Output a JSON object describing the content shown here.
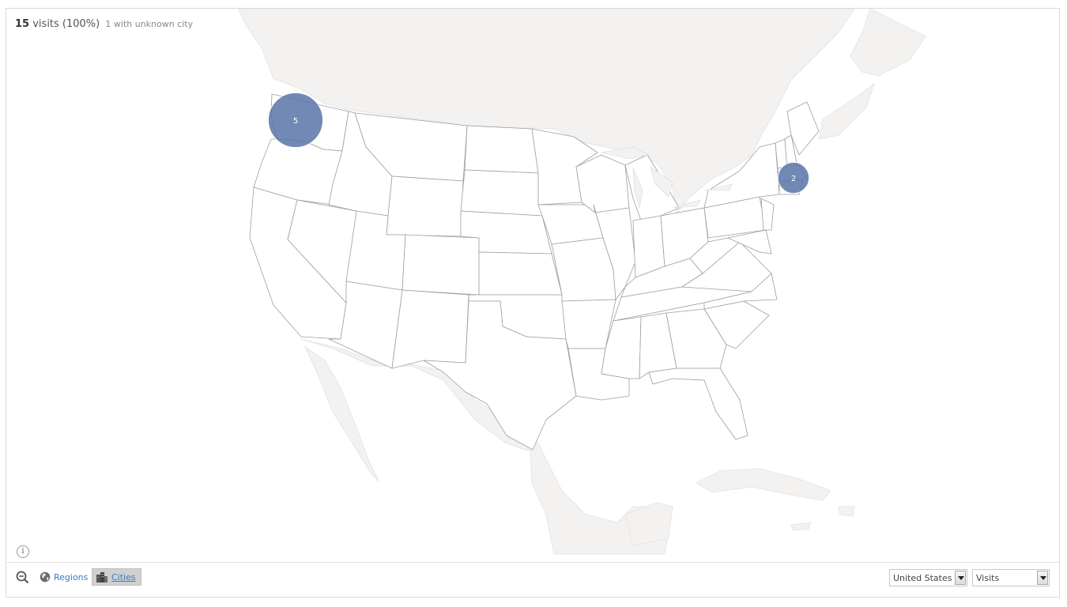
{
  "summary": {
    "visits_count": "15",
    "visits_text": "visits (100%)",
    "unknown_text": "1 with unknown city"
  },
  "map": {
    "land_color": "#f3f2f1",
    "state_color": "#ffffff",
    "border_color": "#9e9e9e",
    "bubble_color": "#5b74a8",
    "bubbles": [
      {
        "label": "5",
        "value": 5
      },
      {
        "label": "2",
        "value": 2
      }
    ]
  },
  "info_button": {
    "label": "i"
  },
  "toolbar": {
    "zoom_out_icon": "zoom-out-icon",
    "regions_label": "Regions",
    "cities_label": "Cities",
    "country_select": "United States",
    "metric_select": "Visits"
  }
}
